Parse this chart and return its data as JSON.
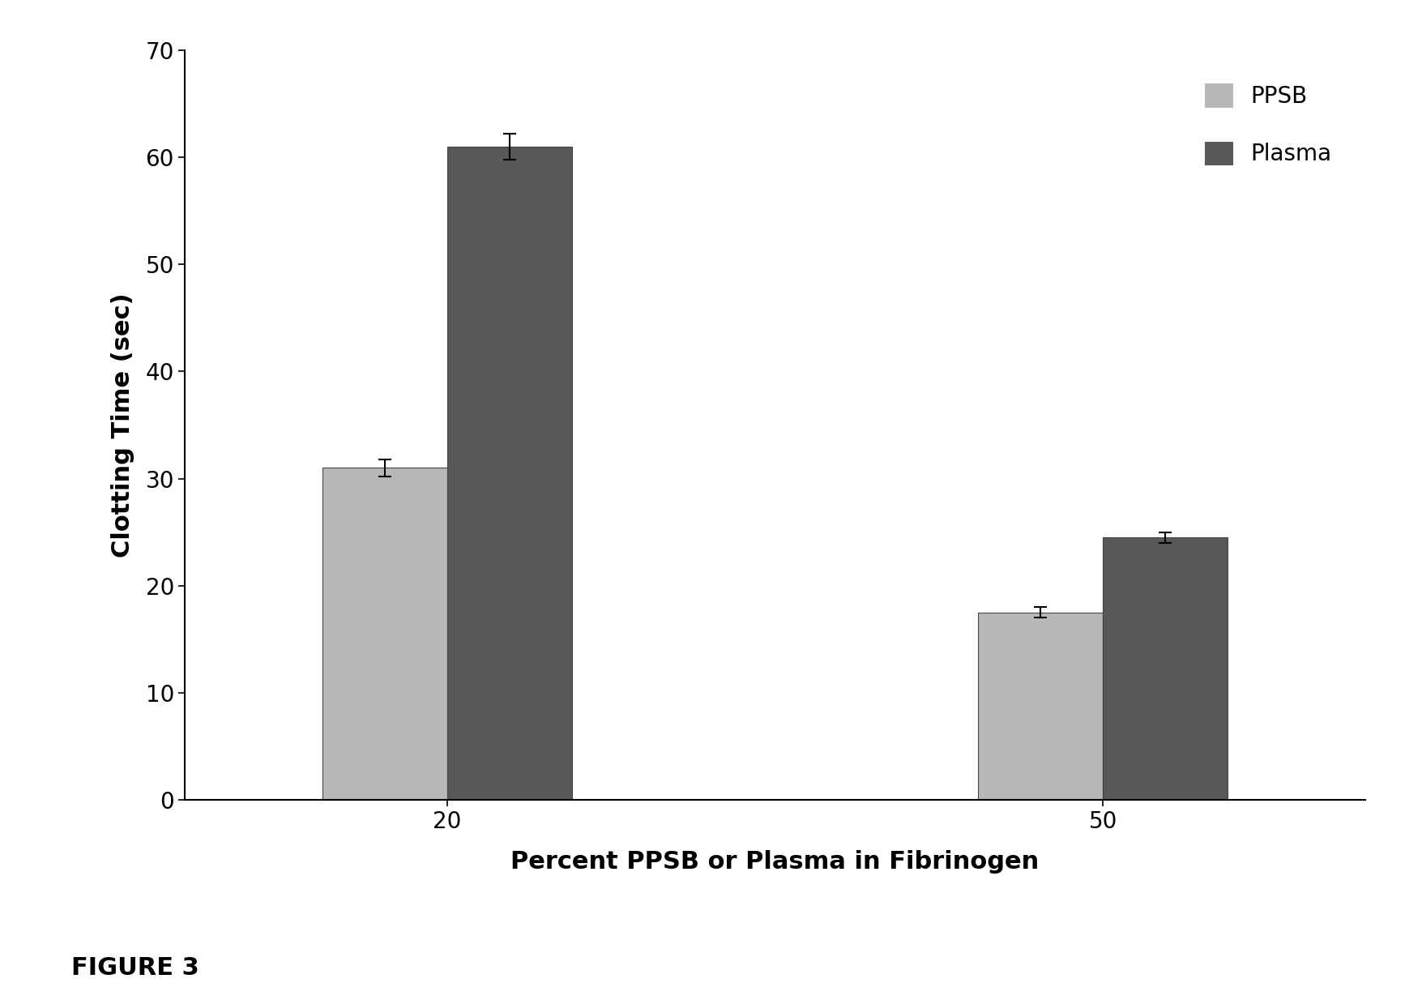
{
  "categories": [
    "20",
    "50"
  ],
  "ppsb_values": [
    31.0,
    17.5
  ],
  "plasma_values": [
    61.0,
    24.5
  ],
  "ppsb_errors": [
    0.8,
    0.5
  ],
  "plasma_errors": [
    1.2,
    0.5
  ],
  "ppsb_color": "#b8b8b8",
  "plasma_color": "#585858",
  "ylabel": "Clotting Time (sec)",
  "xlabel": "Percent PPSB or Plasma in Fibrinogen",
  "ylim": [
    0,
    70
  ],
  "yticks": [
    0,
    10,
    20,
    30,
    40,
    50,
    60,
    70
  ],
  "legend_labels": [
    "PPSB",
    "Plasma"
  ],
  "figure_caption": "FIGURE 3",
  "bar_width": 0.38,
  "x_positions": [
    1.0,
    3.0
  ],
  "xlim": [
    0.2,
    3.8
  ],
  "background_color": "#ffffff",
  "label_fontsize": 22,
  "tick_fontsize": 20,
  "legend_fontsize": 20,
  "caption_fontsize": 22,
  "ylabel_fontsize": 22
}
